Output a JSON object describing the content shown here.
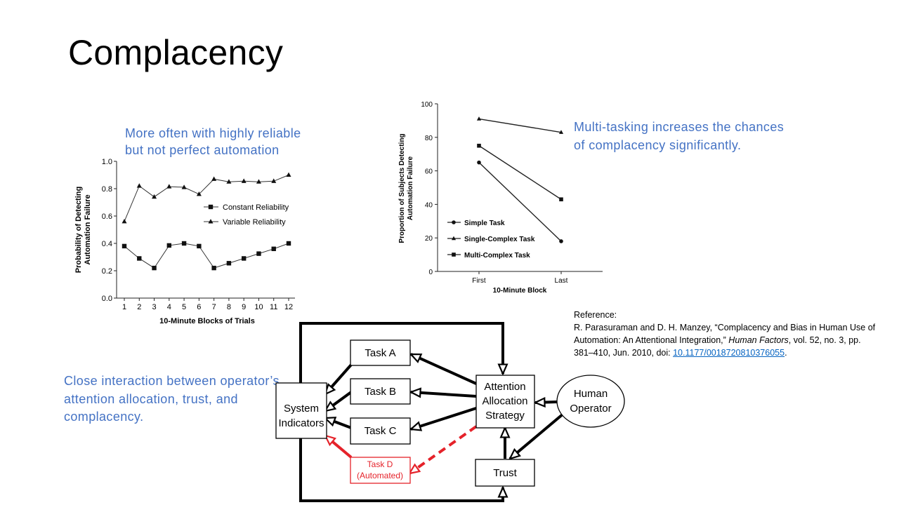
{
  "slide": {
    "title": "Complacency",
    "notes": {
      "reliable": [
        "More often with highly reliable",
        "but not perfect automation"
      ],
      "multitask": [
        "Multi-tasking increases the chances",
        "of complacency significantly."
      ],
      "interaction": [
        "Close interaction between operator’s",
        "attention allocation, trust, and",
        "complacency."
      ]
    },
    "reference": {
      "heading": "Reference:",
      "line1": "R. Parasuraman and D. H. Manzey, “Complacency and Bias in Human Use of",
      "line2_prefix": "Automation: An Attentional Integration,” ",
      "journal": "Human Factors",
      "line2_suffix": ", vol. 52, no. 3, pp.",
      "line3_prefix": "381–410,  Jun. 2010,  doi: ",
      "doi": "10.1177/0018720810376055",
      "line3_suffix": "."
    },
    "colors": {
      "accent": "#4472c4",
      "link": "#0563c1",
      "automated": "#e5222a"
    }
  },
  "chart_data": [
    {
      "type": "line",
      "xlabel": "10-Minute Blocks of Trials",
      "ylabel": [
        "Probability of Detecting",
        "Automation Failure"
      ],
      "x": [
        1,
        2,
        3,
        4,
        5,
        6,
        7,
        8,
        9,
        10,
        11,
        12
      ],
      "x_ticks": [
        "1",
        "2",
        "3",
        "4",
        "5",
        "6",
        "7",
        "8",
        "9",
        "10",
        "11",
        "12"
      ],
      "ylim": [
        0,
        1.0
      ],
      "y_ticks": [
        "0.0",
        "0.2",
        "0.4",
        "0.6",
        "0.8",
        "1.0"
      ],
      "legend": "center-right",
      "series": [
        {
          "name": "Constant Reliability",
          "marker": "square",
          "values": [
            0.38,
            0.29,
            0.22,
            0.385,
            0.4,
            0.38,
            0.22,
            0.255,
            0.29,
            0.325,
            0.36,
            0.4
          ]
        },
        {
          "name": "Variable Reliability",
          "marker": "triangle",
          "values": [
            0.56,
            0.82,
            0.74,
            0.815,
            0.81,
            0.76,
            0.87,
            0.85,
            0.855,
            0.85,
            0.855,
            0.9
          ]
        }
      ]
    },
    {
      "type": "line",
      "xlabel": "10-Minute Block",
      "ylabel": [
        "Proportion of Subjects Detecting",
        "Automation Failure"
      ],
      "categories": [
        "First",
        "Last"
      ],
      "ylim": [
        0,
        100
      ],
      "y_ticks": [
        "0",
        "20",
        "40",
        "60",
        "80",
        "100"
      ],
      "legend": "bottom-left",
      "series": [
        {
          "name": "Simple Task",
          "marker": "circle",
          "values": [
            65,
            18
          ]
        },
        {
          "name": "Single-Complex Task",
          "marker": "triangle",
          "values": [
            91,
            83
          ]
        },
        {
          "name": "Multi-Complex Task",
          "marker": "square",
          "values": [
            75,
            43
          ]
        }
      ]
    }
  ],
  "diagram": {
    "tasks": [
      {
        "label": "Task A"
      },
      {
        "label": "Task B"
      },
      {
        "label": "Task C"
      },
      {
        "label": [
          "Task D",
          "(Automated)"
        ]
      }
    ],
    "system_indicators": [
      "System",
      "Indicators"
    ],
    "attention": [
      "Attention",
      "Allocation",
      "Strategy"
    ],
    "operator": [
      "Human",
      "Operator"
    ],
    "trust": "Trust"
  }
}
